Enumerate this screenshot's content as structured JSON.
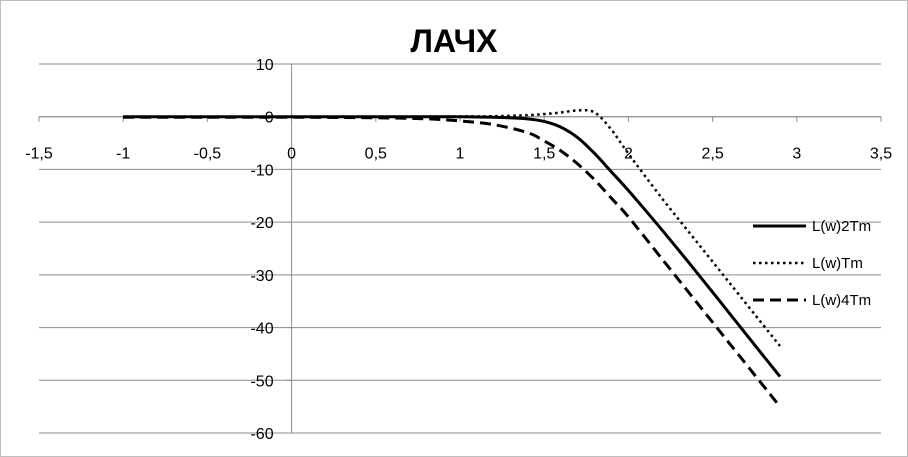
{
  "chart_data": {
    "type": "line",
    "title": "ЛАЧХ",
    "xlabel": "",
    "ylabel": "",
    "xlim": [
      -1.5,
      3.5
    ],
    "ylim": [
      -60,
      10
    ],
    "x_ticks": [
      "-1,5",
      "-1",
      "-0,5",
      "0",
      "0,5",
      "1",
      "1,5",
      "2",
      "2,5",
      "3",
      "3,5"
    ],
    "y_ticks": [
      "10",
      "0",
      "-10",
      "-20",
      "-30",
      "-40",
      "-50",
      "-60"
    ],
    "grid": "horizontal",
    "legend_position": "right",
    "series": [
      {
        "name": "L(w)2Tm",
        "style": "solid",
        "color": "#000000",
        "x": [
          -1.0,
          -0.5,
          0.0,
          0.5,
          1.0,
          1.2,
          1.4,
          1.5,
          1.6,
          1.7,
          1.8,
          1.9,
          2.0,
          2.2,
          2.4,
          2.6,
          2.8,
          2.9
        ],
        "y": [
          0,
          0,
          0,
          0,
          0,
          -0.1,
          -0.4,
          -0.9,
          -2.0,
          -4.0,
          -7.0,
          -10.5,
          -14.0,
          -21.5,
          -29.3,
          -37.3,
          -45.3,
          -49.3
        ]
      },
      {
        "name": "L(w)Tm",
        "style": "dotted",
        "color": "#000000",
        "x": [
          -1.0,
          -0.5,
          0.0,
          0.5,
          1.0,
          1.2,
          1.4,
          1.5,
          1.6,
          1.7,
          1.8,
          1.9,
          2.0,
          2.2,
          2.4,
          2.6,
          2.8,
          2.9
        ],
        "y": [
          0,
          0,
          0,
          0,
          0.05,
          0.1,
          0.3,
          0.5,
          0.8,
          1.2,
          0.8,
          -2.5,
          -7.0,
          -15.5,
          -23.5,
          -31.5,
          -39.5,
          -43.5
        ]
      },
      {
        "name": "L(w)4Tm",
        "style": "dashed",
        "color": "#000000",
        "x": [
          -1.0,
          -0.5,
          0.0,
          0.5,
          0.8,
          1.0,
          1.2,
          1.4,
          1.5,
          1.6,
          1.7,
          1.8,
          1.9,
          2.0,
          2.2,
          2.4,
          2.6,
          2.8,
          2.9
        ],
        "y": [
          -0.1,
          -0.1,
          -0.1,
          -0.2,
          -0.4,
          -0.8,
          -1.5,
          -3.0,
          -4.6,
          -6.5,
          -9.0,
          -12.0,
          -15.5,
          -19.0,
          -27.0,
          -35.0,
          -43.0,
          -51.0,
          -55.0
        ]
      }
    ]
  }
}
